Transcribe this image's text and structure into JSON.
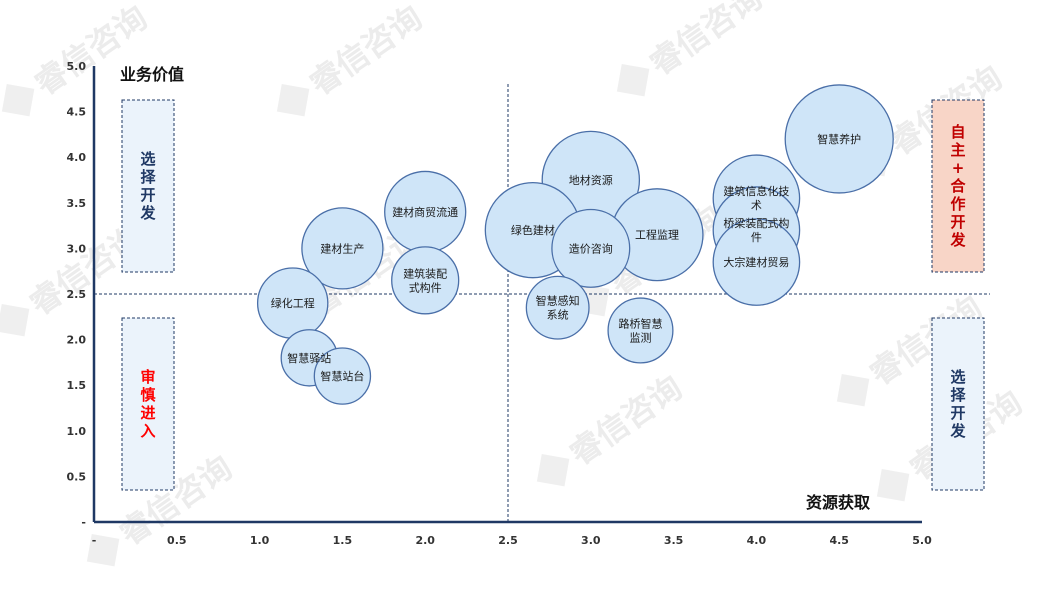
{
  "chart_data": {
    "type": "scatter",
    "xlabel": "资源获取",
    "ylabel": "业务价值",
    "xlim": [
      0,
      5
    ],
    "ylim": [
      0,
      5
    ],
    "x_ticks": [
      "-",
      "0.5",
      "1.0",
      "1.5",
      "2.0",
      "2.5",
      "3.0",
      "3.5",
      "4.0",
      "4.5",
      "5.0"
    ],
    "y_ticks": [
      "-",
      "0.5",
      "1.0",
      "1.5",
      "2.0",
      "2.5",
      "3.0",
      "3.5",
      "4.0",
      "4.5",
      "5.0"
    ],
    "divider": {
      "x": 2.5,
      "y": 2.5
    },
    "points": [
      {
        "label": "智慧养护",
        "x": 4.5,
        "y": 4.2,
        "size": 1.0
      },
      {
        "label": "地材资源",
        "x": 3.0,
        "y": 3.75,
        "size": 0.9
      },
      {
        "label": "建筑信息化技术",
        "x": 4.0,
        "y": 3.55,
        "size": 0.8
      },
      {
        "label": "建材商贸流通",
        "x": 2.0,
        "y": 3.4,
        "size": 0.75
      },
      {
        "label": "绿色建材",
        "x": 2.65,
        "y": 3.2,
        "size": 0.88
      },
      {
        "label": "工程监理",
        "x": 3.4,
        "y": 3.15,
        "size": 0.85
      },
      {
        "label": "桥梁装配式构件",
        "x": 4.0,
        "y": 3.2,
        "size": 0.8
      },
      {
        "label": "建材生产",
        "x": 1.5,
        "y": 3.0,
        "size": 0.75
      },
      {
        "label": "造价咨询",
        "x": 3.0,
        "y": 3.0,
        "size": 0.72
      },
      {
        "label": "大宗建材贸易",
        "x": 4.0,
        "y": 2.85,
        "size": 0.8
      },
      {
        "label": "建筑装配式构件",
        "x": 2.0,
        "y": 2.65,
        "size": 0.62
      },
      {
        "label": "绿化工程",
        "x": 1.2,
        "y": 2.4,
        "size": 0.65
      },
      {
        "label": "智慧感知系统",
        "x": 2.8,
        "y": 2.35,
        "size": 0.58
      },
      {
        "label": "路桥智慧监测",
        "x": 3.3,
        "y": 2.1,
        "size": 0.6
      },
      {
        "label": "智慧驿站",
        "x": 1.3,
        "y": 1.8,
        "size": 0.52
      },
      {
        "label": "智慧站台",
        "x": 1.5,
        "y": 1.6,
        "size": 0.52
      }
    ],
    "quadrant_labels": [
      {
        "text": "选择开发",
        "position": "top-left",
        "color": "#1f3864"
      },
      {
        "text": "自主+合作开发",
        "position": "top-right",
        "color": "#c00000"
      },
      {
        "text": "审慎进入",
        "position": "bottom-left",
        "color": "#ff0000"
      },
      {
        "text": "选择开发",
        "position": "bottom-right",
        "color": "#1f3864"
      }
    ],
    "colors": {
      "bubble_fill": "#cfe5f8",
      "bubble_stroke": "#4a6fa8",
      "top_right_box_fill": "#f8d5c7"
    }
  },
  "watermark": {
    "text": "睿信咨询"
  }
}
